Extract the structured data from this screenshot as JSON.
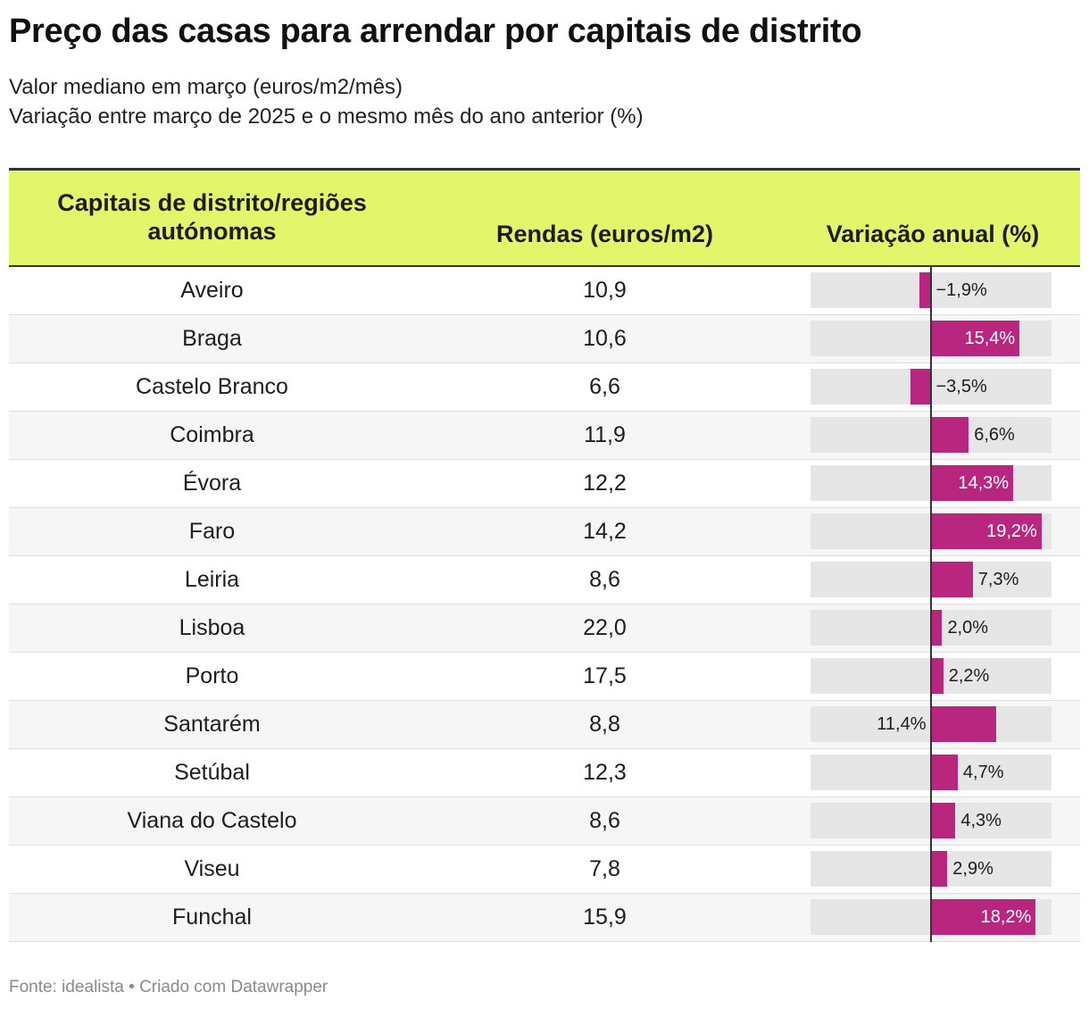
{
  "title": "Preço das casas para arrendar por capitais de distrito",
  "subtitle_line1": "Valor mediano em março (euros/m2/mês)",
  "subtitle_line2": "Variação entre março de 2025 e o mesmo mês do ano anterior (%)",
  "columns": {
    "city": "Capitais de distrito/regiões autónomas",
    "rent": "Rendas (euros/m2)",
    "variation": "Variação anual (%)"
  },
  "footer": "Fonte: idealista • Criado com Datawrapper",
  "colors": {
    "header_bg": "#e2f56b",
    "bar": "#b8267f",
    "bar_bg": "#e6e6e6"
  },
  "chart_data": {
    "type": "table",
    "title": "Preço das casas para arrendar por capitais de distrito",
    "columns": [
      "Capitais de distrito/regiões autónomas",
      "Rendas (euros/m2)",
      "Variação anual (%)"
    ],
    "bar_axis_range": [
      -10,
      20
    ],
    "rows": [
      {
        "city": "Aveiro",
        "rent": "10,9",
        "variation": -1.9,
        "variation_label": "−1,9%"
      },
      {
        "city": "Braga",
        "rent": "10,6",
        "variation": 15.4,
        "variation_label": "15,4%"
      },
      {
        "city": "Castelo Branco",
        "rent": "6,6",
        "variation": -3.5,
        "variation_label": "−3,5%"
      },
      {
        "city": "Coimbra",
        "rent": "11,9",
        "variation": 6.6,
        "variation_label": "6,6%"
      },
      {
        "city": "Évora",
        "rent": "12,2",
        "variation": 14.3,
        "variation_label": "14,3%"
      },
      {
        "city": "Faro",
        "rent": "14,2",
        "variation": 19.2,
        "variation_label": "19,2%"
      },
      {
        "city": "Leiria",
        "rent": "8,6",
        "variation": 7.3,
        "variation_label": "7,3%"
      },
      {
        "city": "Lisboa",
        "rent": "22,0",
        "variation": 2.0,
        "variation_label": "2,0%"
      },
      {
        "city": "Porto",
        "rent": "17,5",
        "variation": 2.2,
        "variation_label": "2,2%"
      },
      {
        "city": "Santarém",
        "rent": "8,8",
        "variation": 11.4,
        "variation_label": "11,4%"
      },
      {
        "city": "Setúbal",
        "rent": "12,3",
        "variation": 4.7,
        "variation_label": "4,7%"
      },
      {
        "city": "Viana do Castelo",
        "rent": "8,6",
        "variation": 4.3,
        "variation_label": "4,3%"
      },
      {
        "city": "Viseu",
        "rent": "7,8",
        "variation": 2.9,
        "variation_label": "2,9%"
      },
      {
        "city": "Funchal",
        "rent": "15,9",
        "variation": 18.2,
        "variation_label": "18,2%"
      }
    ]
  }
}
